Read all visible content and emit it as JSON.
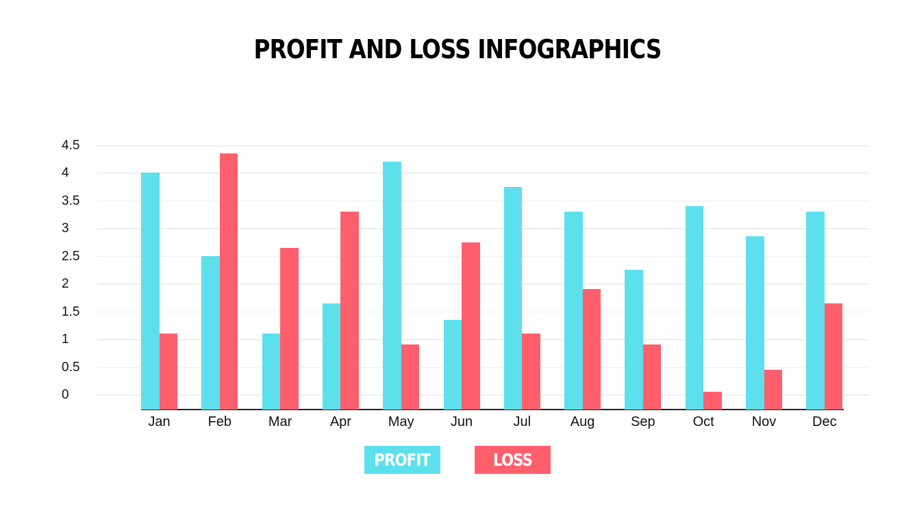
{
  "title": "PROFIT AND LOSS INFOGRAPHICS",
  "colors": {
    "profit": "#5de0ec",
    "loss": "#ff5f6d",
    "grid": "#eeeeee",
    "axis": "#222222"
  },
  "legend": [
    {
      "label": "PROFIT",
      "color": "#5de0ec"
    },
    {
      "label": "LOSS",
      "color": "#ff5f6d"
    }
  ],
  "chart_data": {
    "type": "bar",
    "title": "PROFIT AND LOSS INFOGRAPHICS",
    "xlabel": "",
    "ylabel": "",
    "categories": [
      "Jan",
      "Feb",
      "Mar",
      "Apr",
      "May",
      "Jun",
      "Jul",
      "Aug",
      "Sep",
      "Oct",
      "Nov",
      "Dec"
    ],
    "series": [
      {
        "name": "PROFIT",
        "color": "#5de0ec",
        "values": [
          4.0,
          2.5,
          1.1,
          1.65,
          4.2,
          1.35,
          3.75,
          3.3,
          2.25,
          3.4,
          2.85,
          3.3
        ]
      },
      {
        "name": "LOSS",
        "color": "#ff5f6d",
        "values": [
          1.1,
          4.35,
          2.65,
          3.3,
          0.9,
          2.75,
          1.1,
          1.9,
          0.9,
          0.05,
          0.45,
          1.65
        ]
      }
    ],
    "yticks": [
      "4.5",
      "4",
      "3.5",
      "3",
      "2.5",
      "2",
      "1.5",
      "1",
      "0.5",
      "0"
    ],
    "ylim": [
      0,
      4.5
    ],
    "grid": true,
    "legend_position": "bottom"
  }
}
